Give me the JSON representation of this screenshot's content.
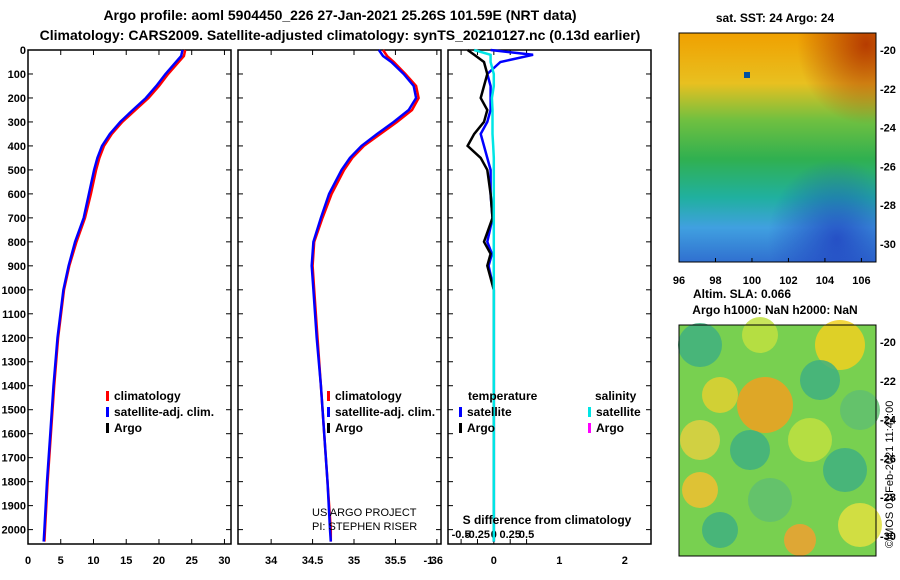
{
  "header": {
    "line1": "Argo profile: aoml 5904450_226 27-Jan-2021 25.26S 101.59E (NRT data)",
    "line2": "Climatology: CARS2009. Satellite-adjusted climatology: synTS_20210127.nc (0.13d earlier)"
  },
  "colors": {
    "climatology": "#ff0000",
    "satellite": "#0000ff",
    "argo": "#000000",
    "sal_sat": "#00e5e5",
    "sal_argo": "#ff00ff"
  },
  "chart_data": [
    {
      "type": "line",
      "name": "temperature-profile",
      "xlim": [
        0,
        31
      ],
      "ylim": [
        0,
        2060
      ],
      "x_ticks": [
        0,
        5,
        10,
        15,
        20,
        25,
        30
      ],
      "y_ticks": [
        0,
        100,
        200,
        300,
        400,
        500,
        600,
        700,
        800,
        900,
        1000,
        1100,
        1200,
        1300,
        1400,
        1500,
        1600,
        1700,
        1800,
        1900,
        2000
      ],
      "depth": [
        0,
        25,
        50,
        100,
        150,
        200,
        250,
        300,
        350,
        400,
        450,
        500,
        600,
        700,
        800,
        900,
        1000,
        1200,
        1400,
        1600,
        1800,
        2000,
        2050
      ],
      "series": [
        {
          "name": "climatology",
          "values": [
            24.0,
            23.8,
            23.0,
            21.4,
            20.0,
            18.4,
            16.4,
            14.4,
            12.8,
            11.6,
            10.9,
            10.4,
            9.6,
            8.7,
            7.4,
            6.3,
            5.5,
            4.6,
            4.0,
            3.5,
            3.0,
            2.6,
            2.5
          ]
        },
        {
          "name": "satellite-adj. clim.",
          "values": [
            23.6,
            23.4,
            22.6,
            21.0,
            19.6,
            18.0,
            16.0,
            14.1,
            12.5,
            11.3,
            10.6,
            10.1,
            9.3,
            8.5,
            7.2,
            6.2,
            5.4,
            4.5,
            3.9,
            3.4,
            2.9,
            2.5,
            2.4
          ]
        }
      ],
      "legend": [
        "climatology",
        "satellite-adj. clim.",
        "Argo"
      ]
    },
    {
      "type": "line",
      "name": "salinity-profile",
      "xlim": [
        33.6,
        36.05
      ],
      "ylim": [
        0,
        2060
      ],
      "x_ticks": [
        34,
        34.5,
        35,
        35.5,
        36
      ],
      "depth": [
        0,
        25,
        50,
        100,
        150,
        200,
        250,
        300,
        350,
        400,
        450,
        500,
        600,
        700,
        800,
        900,
        1000,
        1200,
        1400,
        1600,
        1800,
        2000,
        2050
      ],
      "series": [
        {
          "name": "climatology",
          "values": [
            35.35,
            35.4,
            35.48,
            35.62,
            35.75,
            35.78,
            35.7,
            35.52,
            35.32,
            35.12,
            34.98,
            34.88,
            34.73,
            34.62,
            34.52,
            34.5,
            34.52,
            34.56,
            34.6,
            34.64,
            34.68,
            34.72,
            34.72
          ]
        },
        {
          "name": "satellite-adj. clim.",
          "values": [
            35.3,
            35.35,
            35.45,
            35.6,
            35.72,
            35.75,
            35.66,
            35.48,
            35.28,
            35.09,
            34.95,
            34.85,
            34.7,
            34.6,
            34.51,
            34.49,
            34.51,
            34.55,
            34.6,
            34.64,
            34.68,
            34.71,
            34.72
          ]
        }
      ],
      "legend": [
        "climatology",
        "satellite-adj. clim.",
        "Argo"
      ],
      "credit": [
        "US ARGO PROJECT",
        "PI: STEPHEN RISER"
      ]
    },
    {
      "type": "line",
      "name": "difference-from-climatology",
      "xlim": [
        -0.7,
        2.4
      ],
      "ylim": [
        0,
        2060
      ],
      "x_ticks": [
        -0.5,
        -0.25,
        0,
        0.25,
        0.5
      ],
      "x_ticks_top": [
        -1,
        0,
        1,
        2
      ],
      "title": "S difference from climatology",
      "depth": [
        0,
        20,
        50,
        100,
        150,
        200,
        250,
        300,
        350,
        400,
        450,
        500,
        600,
        700,
        800,
        850,
        900,
        1000,
        1200,
        1400,
        1600,
        1800,
        2000,
        2050
      ],
      "series": [
        {
          "name": "temperature satellite",
          "values": [
            -0.05,
            0.6,
            0.1,
            -0.1,
            -0.05,
            -0.05,
            -0.05,
            -0.1,
            -0.2,
            -0.15,
            -0.1,
            -0.05,
            -0.05,
            -0.02,
            -0.1,
            -0.03,
            -0.08,
            0,
            0,
            0,
            0,
            0,
            0,
            0
          ]
        },
        {
          "name": "temperature Argo",
          "values": [
            -0.4,
            -0.3,
            -0.15,
            -0.1,
            -0.15,
            -0.2,
            -0.1,
            -0.15,
            -0.3,
            -0.4,
            -0.2,
            -0.1,
            -0.05,
            -0.02,
            -0.15,
            -0.05,
            -0.1,
            0,
            0,
            0,
            0,
            0,
            0,
            0
          ]
        },
        {
          "name": "salinity satellite",
          "values": [
            -0.3,
            -0.05,
            -0.05,
            0,
            0,
            -0.03,
            -0.02,
            -0.02,
            -0.02,
            -0.01,
            0,
            0,
            0,
            0,
            0,
            0,
            0,
            0,
            0,
            0,
            0,
            0,
            0,
            0
          ]
        }
      ],
      "legend_temperature": {
        "title": "temperature",
        "items": [
          "satellite",
          "Argo"
        ]
      },
      "legend_salinity": {
        "title": "salinity",
        "items": [
          "satellite",
          "Argo"
        ]
      }
    }
  ],
  "maps": {
    "sst": {
      "title": "sat. SST: 24 Argo: 24",
      "x_ticks": [
        96,
        98,
        100,
        102,
        104,
        106
      ],
      "y_ticks": [
        -20,
        -22,
        -24,
        -26,
        -28,
        -30
      ]
    },
    "sla": {
      "title1": "Altim. SLA: 0.066",
      "title2": "Argo h1000: NaN h2000: NaN",
      "y_ticks": [
        -20,
        -22,
        -24,
        -26,
        -28,
        -30
      ]
    }
  },
  "footer": {
    "credit": "©IMOS 01-Feb-2021 11:42:00"
  }
}
